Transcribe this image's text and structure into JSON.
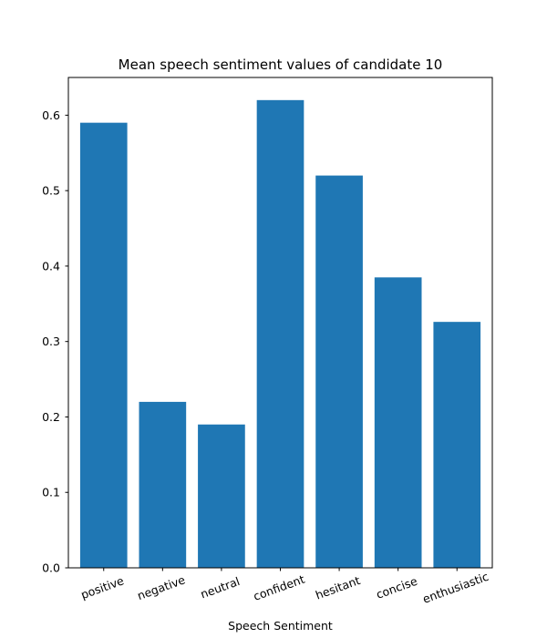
{
  "chart_data": {
    "type": "bar",
    "title": "Mean speech sentiment values of candidate 10",
    "xlabel": "Speech Sentiment",
    "ylabel": "",
    "categories": [
      "positive",
      "negative",
      "neutral",
      "confident",
      "hesitant",
      "concise",
      "enthusiastic"
    ],
    "values": [
      0.59,
      0.22,
      0.19,
      0.62,
      0.52,
      0.385,
      0.326
    ],
    "ylim": [
      0,
      0.65
    ],
    "yticks": [
      "0.0",
      "0.1",
      "0.2",
      "0.3",
      "0.4",
      "0.5",
      "0.6"
    ],
    "bar_color": "#1f77b4",
    "grid": false,
    "legend": "none"
  }
}
